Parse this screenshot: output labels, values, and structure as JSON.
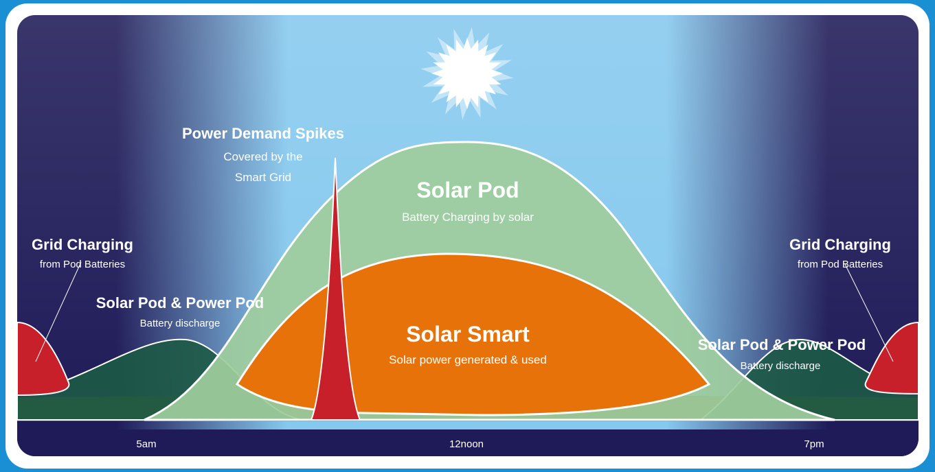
{
  "spike": {
    "title": "Power Demand Spikes",
    "lines": [
      "Covered by the",
      "Smart Grid"
    ]
  },
  "solar_pod": {
    "title": "Solar Pod",
    "subtitle": "Battery Charging by solar"
  },
  "solar_smart": {
    "title": "Solar Smart",
    "subtitle": "Solar power generated & used"
  },
  "grid_left": {
    "title": "Grid Charging",
    "subtitle": "from Pod Batteries"
  },
  "grid_right": {
    "title": "Grid Charging",
    "subtitle": "from Pod Batteries"
  },
  "pods_left": {
    "title": "Solar Pod & Power Pod",
    "subtitle": "Battery discharge"
  },
  "pods_right": {
    "title": "Solar Pod & Power Pod",
    "subtitle": "Battery discharge"
  },
  "timeline": [
    "5am",
    "12noon",
    "7pm"
  ]
}
